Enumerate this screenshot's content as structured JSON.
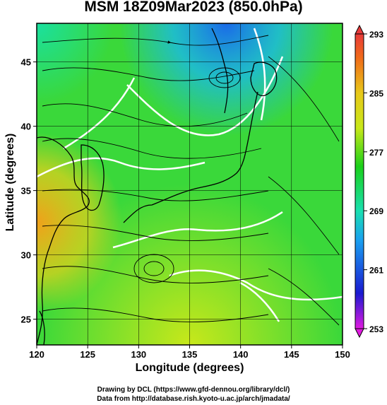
{
  "title": "MSM 18Z09Mar2023 (850.0hPa)",
  "map": {
    "xlabel": "Longitude (degrees)",
    "ylabel": "Latitude  (degrees)",
    "lon_range": [
      120,
      150
    ],
    "lat_range": [
      23,
      48
    ],
    "x_ticks": [
      "120",
      "125",
      "130",
      "135",
      "140",
      "145",
      "150"
    ],
    "y_ticks": [
      "25",
      "30",
      "35",
      "40",
      "45"
    ],
    "grid": true,
    "field": "temperature with streamlines"
  },
  "colorbar": {
    "ticks": [
      "293",
      "285",
      "277",
      "269",
      "261",
      "253"
    ],
    "range": [
      253,
      293
    ],
    "colors": [
      "#e01ae0",
      "#1a1ad0",
      "#1aa0f0",
      "#1ae0b0",
      "#1ad01a",
      "#c8e81a",
      "#e8c81a",
      "#f06a1a",
      "#e83a3a"
    ]
  },
  "credits": {
    "line1": "Drawing by DCL (https://www.gfd-dennou.org/library/dcl/)",
    "line2": "Data from http://database.rish.kyoto-u.ac.jp/arch/jmadata/"
  }
}
